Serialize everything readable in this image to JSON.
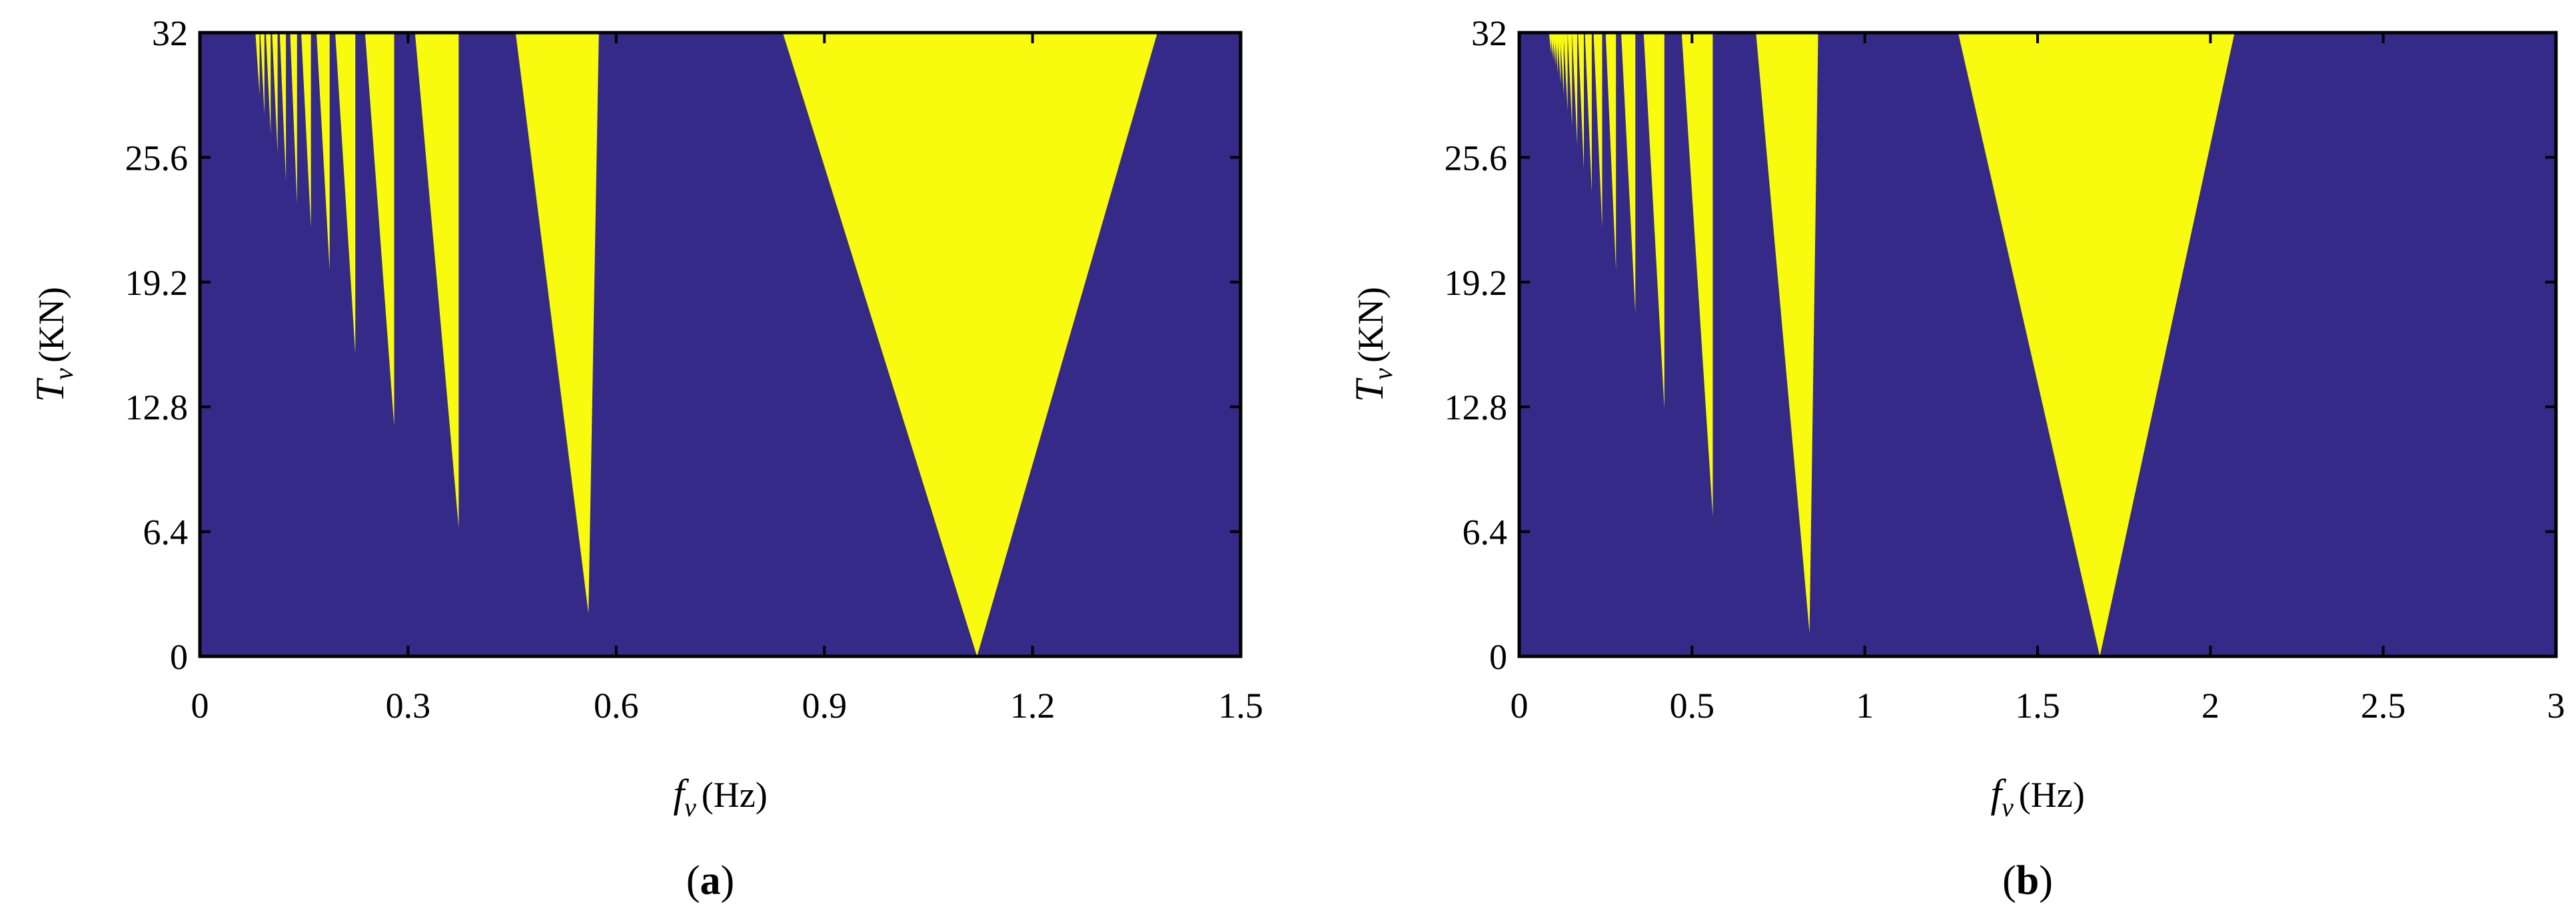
{
  "chart_data": [
    {
      "type": "heatmap",
      "panel": "a",
      "caption": {
        "open": "(",
        "letter": "a",
        "close": ")"
      },
      "xlabel": {
        "symbol": "f",
        "sub": "v",
        "unit": "(Hz)"
      },
      "ylabel": {
        "symbol": "T",
        "sub": "v",
        "unit": "(KN)"
      },
      "xlim": [
        0,
        1.5
      ],
      "ylim": [
        0,
        32
      ],
      "xticks": [
        0,
        0.3,
        0.6,
        0.9,
        1.2,
        1.5
      ],
      "xtick_labels": [
        "0",
        "0.3",
        "0.6",
        "0.9",
        "1.2",
        "1.5"
      ],
      "yticks": [
        0,
        6.4,
        12.8,
        19.2,
        25.6,
        32
      ],
      "ytick_labels": [
        "0",
        "6.4",
        "12.8",
        "19.2",
        "25.6",
        "32"
      ],
      "colors": {
        "background": "#352a87",
        "region": "#f9fb0e"
      },
      "regions": [
        {
          "apex_f": 1.12,
          "apex_T": 0.0,
          "top_left_f": 0.84,
          "top_right_f": 1.38
        },
        {
          "apex_f": 0.56,
          "apex_T": 2.2,
          "top_left_f": 0.455,
          "top_right_f": 0.575
        },
        {
          "apex_f": 0.373,
          "apex_T": 6.6,
          "top_left_f": 0.31,
          "top_right_f": 0.373
        },
        {
          "apex_f": 0.28,
          "apex_T": 11.8,
          "top_left_f": 0.238,
          "top_right_f": 0.28
        },
        {
          "apex_f": 0.224,
          "apex_T": 15.5,
          "top_left_f": 0.195,
          "top_right_f": 0.224
        },
        {
          "apex_f": 0.187,
          "apex_T": 19.8,
          "top_left_f": 0.168,
          "top_right_f": 0.187
        },
        {
          "apex_f": 0.16,
          "apex_T": 22.0,
          "top_left_f": 0.146,
          "top_right_f": 0.16
        },
        {
          "apex_f": 0.14,
          "apex_T": 23.2,
          "top_left_f": 0.13,
          "top_right_f": 0.14
        },
        {
          "apex_f": 0.124,
          "apex_T": 24.4,
          "top_left_f": 0.115,
          "top_right_f": 0.124
        },
        {
          "apex_f": 0.112,
          "apex_T": 25.8,
          "top_left_f": 0.104,
          "top_right_f": 0.112
        },
        {
          "apex_f": 0.102,
          "apex_T": 26.8,
          "top_left_f": 0.095,
          "top_right_f": 0.102
        },
        {
          "apex_f": 0.093,
          "apex_T": 27.8,
          "top_left_f": 0.087,
          "top_right_f": 0.093
        },
        {
          "apex_f": 0.086,
          "apex_T": 28.8,
          "top_left_f": 0.08,
          "top_right_f": 0.086
        }
      ]
    },
    {
      "type": "heatmap",
      "panel": "b",
      "caption": {
        "open": "(",
        "letter": "b",
        "close": ")"
      },
      "xlabel": {
        "symbol": "f",
        "sub": "v",
        "unit": "(Hz)"
      },
      "ylabel": {
        "symbol": "T",
        "sub": "v",
        "unit": "(KN)"
      },
      "xlim": [
        0,
        3
      ],
      "ylim": [
        0,
        32
      ],
      "xticks": [
        0,
        0.5,
        1,
        1.5,
        2,
        2.5,
        3
      ],
      "xtick_labels": [
        "0",
        "0.5",
        "1",
        "1.5",
        "2",
        "2.5",
        "3"
      ],
      "yticks": [
        0,
        6.4,
        12.8,
        19.2,
        25.6,
        32
      ],
      "ytick_labels": [
        "0",
        "6.4",
        "12.8",
        "19.2",
        "25.6",
        "32"
      ],
      "colors": {
        "background": "#352a87",
        "region": "#f9fb0e"
      },
      "regions": [
        {
          "apex_f": 1.68,
          "apex_T": 0.0,
          "top_left_f": 1.27,
          "top_right_f": 2.07
        },
        {
          "apex_f": 0.84,
          "apex_T": 1.2,
          "top_left_f": 0.685,
          "top_right_f": 0.865
        },
        {
          "apex_f": 0.56,
          "apex_T": 7.2,
          "top_left_f": 0.47,
          "top_right_f": 0.56
        },
        {
          "apex_f": 0.42,
          "apex_T": 12.7,
          "top_left_f": 0.36,
          "top_right_f": 0.42
        },
        {
          "apex_f": 0.336,
          "apex_T": 17.6,
          "top_left_f": 0.295,
          "top_right_f": 0.336
        },
        {
          "apex_f": 0.28,
          "apex_T": 19.8,
          "top_left_f": 0.25,
          "top_right_f": 0.28
        },
        {
          "apex_f": 0.24,
          "apex_T": 22.0,
          "top_left_f": 0.215,
          "top_right_f": 0.24
        },
        {
          "apex_f": 0.21,
          "apex_T": 23.8,
          "top_left_f": 0.19,
          "top_right_f": 0.21
        },
        {
          "apex_f": 0.187,
          "apex_T": 25.0,
          "top_left_f": 0.17,
          "top_right_f": 0.187
        },
        {
          "apex_f": 0.168,
          "apex_T": 26.2,
          "top_left_f": 0.153,
          "top_right_f": 0.168
        },
        {
          "apex_f": 0.153,
          "apex_T": 27.2,
          "top_left_f": 0.14,
          "top_right_f": 0.153
        },
        {
          "apex_f": 0.14,
          "apex_T": 28.0,
          "top_left_f": 0.128,
          "top_right_f": 0.14
        },
        {
          "apex_f": 0.129,
          "apex_T": 28.8,
          "top_left_f": 0.118,
          "top_right_f": 0.129
        },
        {
          "apex_f": 0.12,
          "apex_T": 29.4,
          "top_left_f": 0.11,
          "top_right_f": 0.12
        },
        {
          "apex_f": 0.112,
          "apex_T": 29.9,
          "top_left_f": 0.103,
          "top_right_f": 0.112
        },
        {
          "apex_f": 0.105,
          "apex_T": 30.3,
          "top_left_f": 0.097,
          "top_right_f": 0.105
        },
        {
          "apex_f": 0.099,
          "apex_T": 30.6,
          "top_left_f": 0.091,
          "top_right_f": 0.099
        },
        {
          "apex_f": 0.093,
          "apex_T": 30.9,
          "top_left_f": 0.086,
          "top_right_f": 0.093
        }
      ]
    }
  ]
}
